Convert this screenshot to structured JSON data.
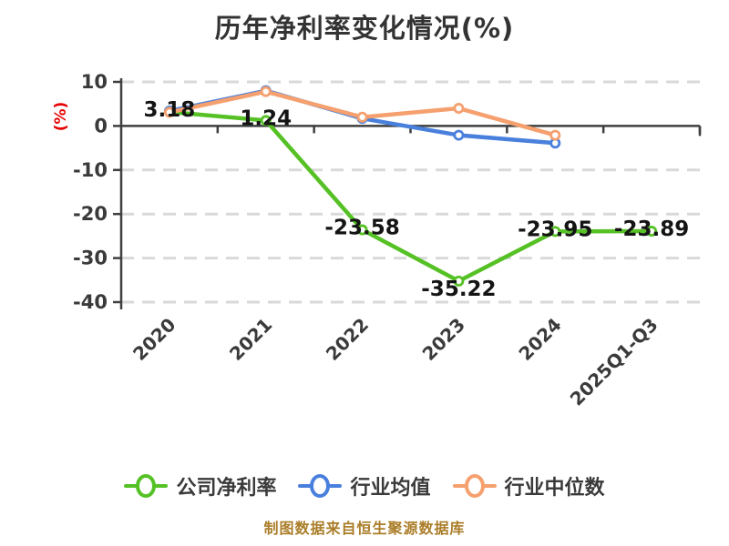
{
  "source_note": "制图数据来自恒生聚源数据库",
  "colors": {
    "title_text": "#333333",
    "axis_line": "#3f3f3f",
    "tick_text": "#3a3a3a",
    "grid_line": "#d9d9d9",
    "data_label_text": "#141414",
    "y_axis_title_red": "#e60000",
    "source_note_gold": "#aa7d28",
    "background": "#ffffff"
  },
  "chart_data": {
    "type": "line",
    "title": "历年净利率变化情况(%)",
    "ylabel": "(%)",
    "xlabel": "",
    "categories": [
      "2020",
      "2021",
      "2022",
      "2023",
      "2024",
      "2025Q1-Q3"
    ],
    "series": [
      {
        "key": "company-net-margin",
        "name": "公司净利率",
        "color": "#55c125",
        "values": [
          3.18,
          1.24,
          -23.58,
          -35.22,
          -23.95,
          -23.89
        ],
        "labels": [
          "3.18",
          "1.24",
          "-23.58",
          "-35.22",
          "-23.95",
          "-23.89"
        ]
      },
      {
        "key": "industry-average",
        "name": "行业均值",
        "color": "#4a80dd",
        "values": [
          3.4,
          8.0,
          1.7,
          -2.1,
          -3.9,
          null
        ]
      },
      {
        "key": "industry-median",
        "name": "行业中位数",
        "color": "#f5a06e",
        "values": [
          3.1,
          7.8,
          2.0,
          4.0,
          -2.1,
          null
        ]
      }
    ],
    "yticks": [
      10,
      0,
      -10,
      -20,
      -30,
      -40
    ],
    "ylim": [
      -40,
      10
    ],
    "grid": "dashed-horizontal",
    "legend_position": "bottom",
    "marker": "circle-white-fill"
  }
}
